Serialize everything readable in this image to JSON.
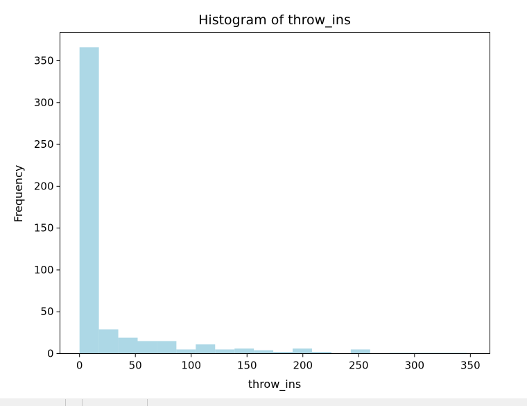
{
  "chart_data": {
    "type": "bar",
    "title": "Histogram of throw_ins",
    "xlabel": "throw_ins",
    "ylabel": "Frequency",
    "xlim": [
      -17.5,
      367.5
    ],
    "ylim": [
      0,
      384
    ],
    "xticks": [
      0,
      50,
      100,
      150,
      200,
      250,
      300,
      350
    ],
    "yticks": [
      0,
      50,
      100,
      150,
      200,
      250,
      300,
      350
    ],
    "bin_edges": [
      0,
      17.35,
      34.7,
      52.05,
      69.4,
      86.75,
      104.1,
      121.45,
      138.8,
      156.15,
      173.5,
      190.85,
      208.2,
      225.55,
      242.9,
      260.25,
      277.6,
      294.95,
      312.3,
      329.65,
      347
    ],
    "values": [
      366,
      29,
      19,
      15,
      15,
      5,
      11,
      5,
      6,
      4,
      2,
      6,
      2,
      0,
      5,
      0,
      1,
      1,
      1,
      1
    ],
    "bar_color": "#add8e6",
    "grid": false
  }
}
